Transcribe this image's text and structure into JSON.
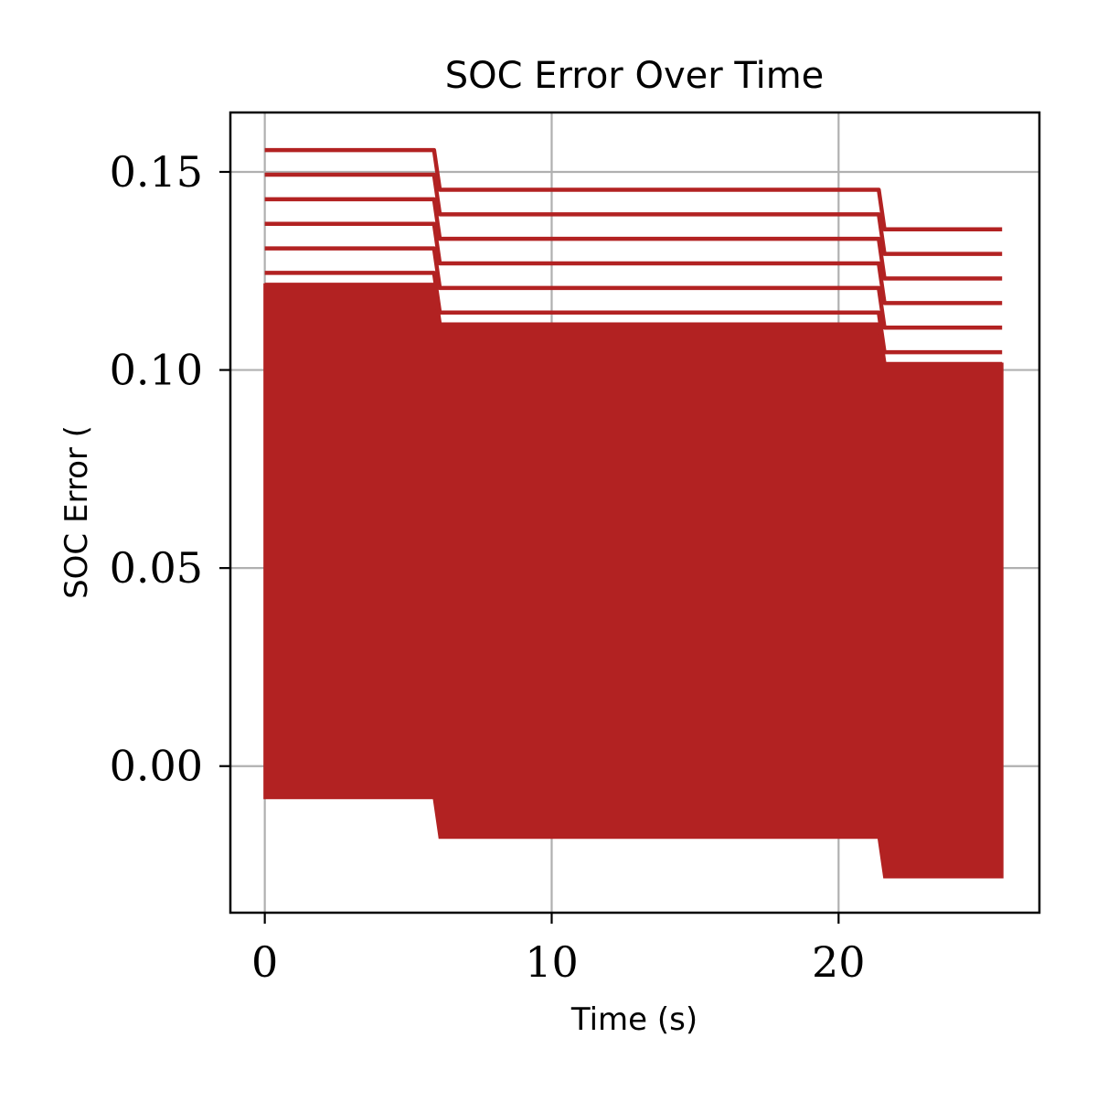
{
  "chart_data": {
    "type": "line",
    "title": "SOC Error Over Time",
    "xlabel": "Time (s)",
    "ylabel": "SOC Error (",
    "xlim": [
      -1.2,
      27.0
    ],
    "ylim": [
      -0.037,
      0.165
    ],
    "xticks": [
      0,
      10,
      20
    ],
    "xtick_labels": [
      "0",
      "10",
      "20"
    ],
    "yticks": [
      0.0,
      0.05,
      0.1,
      0.15
    ],
    "ytick_labels": [
      "0.00",
      "0.05",
      "0.10",
      "0.15"
    ],
    "grid": true,
    "legend": "none",
    "line_color": "#b22222",
    "grid_color": "#b0b0b0",
    "series_template": {
      "x": [
        0,
        5.9,
        6.1,
        21.4,
        21.6,
        25.7
      ],
      "step_offsets": [
        0,
        0,
        -0.01,
        -0.01,
        -0.02,
        -0.02
      ]
    },
    "filled_band": {
      "x": [
        0,
        5.9,
        6.1,
        21.4,
        21.6,
        25.7
      ],
      "lower": [
        -0.008,
        -0.008,
        -0.018,
        -0.018,
        -0.028,
        -0.028
      ],
      "upper": [
        0.1215,
        0.1215,
        0.1115,
        0.1115,
        0.1015,
        0.1015
      ]
    },
    "upper_lines_start_values": [
      0.1555,
      0.1493,
      0.1431,
      0.1369,
      0.1307,
      0.1245,
      0.1215
    ]
  }
}
